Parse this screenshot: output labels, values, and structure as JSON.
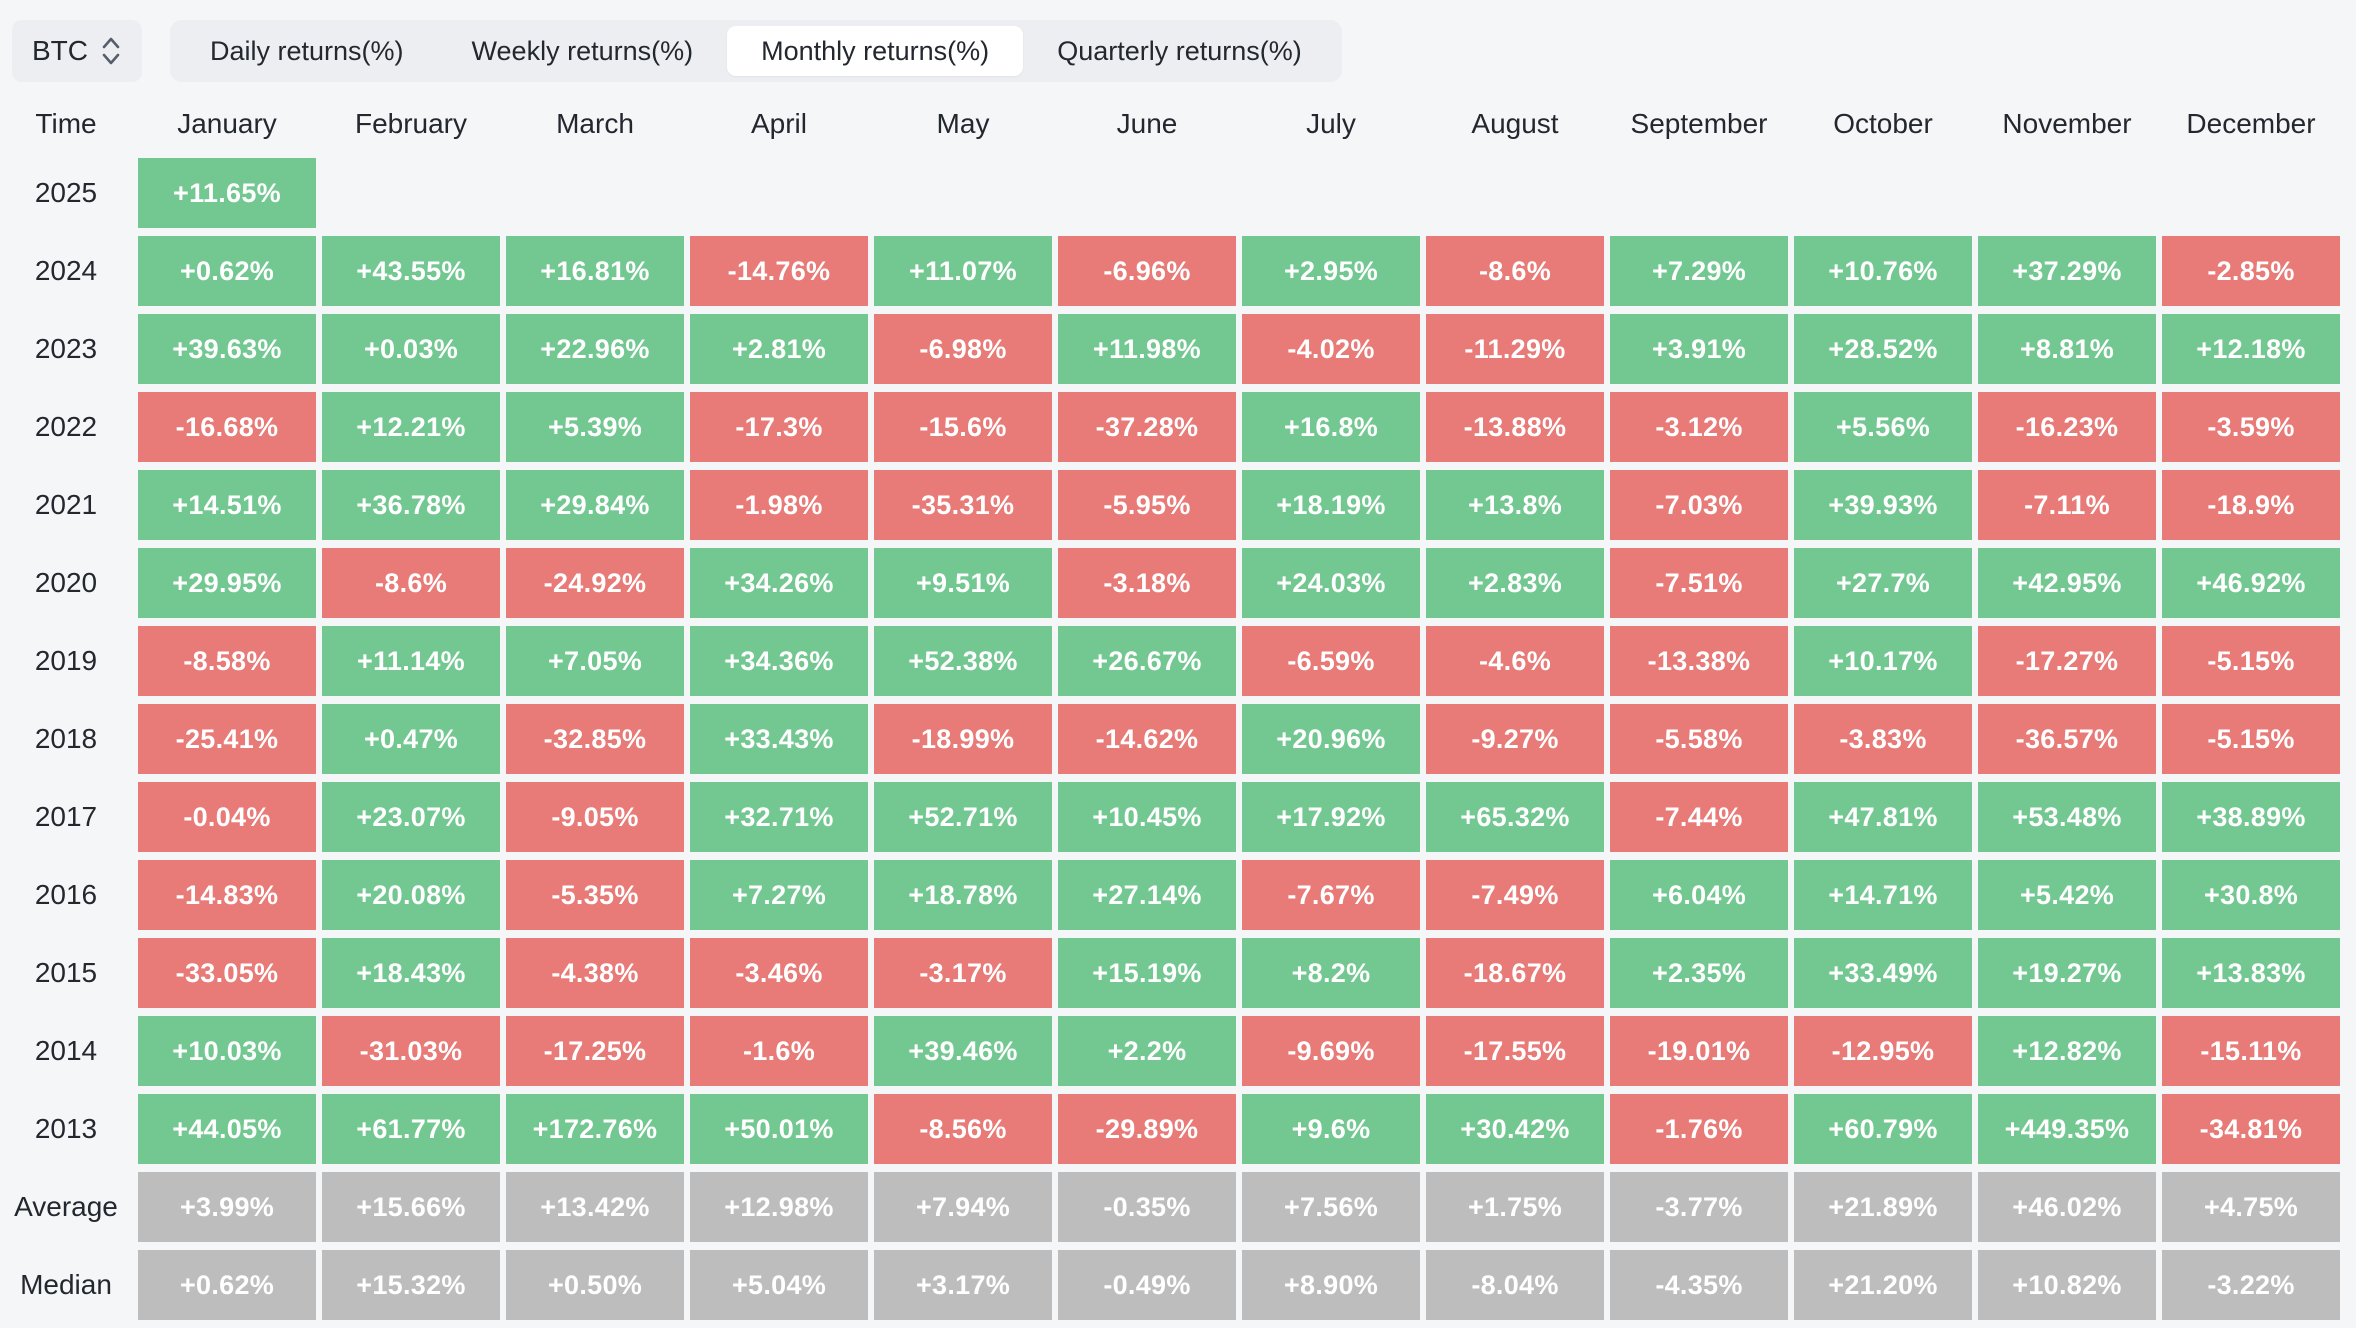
{
  "toolbar": {
    "symbol": "BTC",
    "tabs": [
      {
        "label": "Daily returns(%)",
        "active": false
      },
      {
        "label": "Weekly returns(%)",
        "active": false
      },
      {
        "label": "Monthly returns(%)",
        "active": true
      },
      {
        "label": "Quarterly returns(%)",
        "active": false
      }
    ]
  },
  "colors": {
    "positive": "#73c892",
    "negative": "#e87a77",
    "neutral": "#bdbdbd",
    "page_bg": "#f5f6f8",
    "toolbar_bg": "#eceef2",
    "text_dark": "#23272e",
    "cell_text": "#ffffff"
  },
  "table": {
    "corner": "Time",
    "months": [
      "January",
      "February",
      "March",
      "April",
      "May",
      "June",
      "July",
      "August",
      "September",
      "October",
      "November",
      "December"
    ],
    "rows": [
      {
        "label": "2025",
        "kind": "year",
        "values": [
          "+11.65%",
          "",
          "",
          "",
          "",
          "",
          "",
          "",
          "",
          "",
          "",
          ""
        ]
      },
      {
        "label": "2024",
        "kind": "year",
        "values": [
          "+0.62%",
          "+43.55%",
          "+16.81%",
          "-14.76%",
          "+11.07%",
          "-6.96%",
          "+2.95%",
          "-8.6%",
          "+7.29%",
          "+10.76%",
          "+37.29%",
          "-2.85%"
        ]
      },
      {
        "label": "2023",
        "kind": "year",
        "values": [
          "+39.63%",
          "+0.03%",
          "+22.96%",
          "+2.81%",
          "-6.98%",
          "+11.98%",
          "-4.02%",
          "-11.29%",
          "+3.91%",
          "+28.52%",
          "+8.81%",
          "+12.18%"
        ]
      },
      {
        "label": "2022",
        "kind": "year",
        "values": [
          "-16.68%",
          "+12.21%",
          "+5.39%",
          "-17.3%",
          "-15.6%",
          "-37.28%",
          "+16.8%",
          "-13.88%",
          "-3.12%",
          "+5.56%",
          "-16.23%",
          "-3.59%"
        ]
      },
      {
        "label": "2021",
        "kind": "year",
        "values": [
          "+14.51%",
          "+36.78%",
          "+29.84%",
          "-1.98%",
          "-35.31%",
          "-5.95%",
          "+18.19%",
          "+13.8%",
          "-7.03%",
          "+39.93%",
          "-7.11%",
          "-18.9%"
        ]
      },
      {
        "label": "2020",
        "kind": "year",
        "values": [
          "+29.95%",
          "-8.6%",
          "-24.92%",
          "+34.26%",
          "+9.51%",
          "-3.18%",
          "+24.03%",
          "+2.83%",
          "-7.51%",
          "+27.7%",
          "+42.95%",
          "+46.92%"
        ]
      },
      {
        "label": "2019",
        "kind": "year",
        "values": [
          "-8.58%",
          "+11.14%",
          "+7.05%",
          "+34.36%",
          "+52.38%",
          "+26.67%",
          "-6.59%",
          "-4.6%",
          "-13.38%",
          "+10.17%",
          "-17.27%",
          "-5.15%"
        ]
      },
      {
        "label": "2018",
        "kind": "year",
        "values": [
          "-25.41%",
          "+0.47%",
          "-32.85%",
          "+33.43%",
          "-18.99%",
          "-14.62%",
          "+20.96%",
          "-9.27%",
          "-5.58%",
          "-3.83%",
          "-36.57%",
          "-5.15%"
        ]
      },
      {
        "label": "2017",
        "kind": "year",
        "values": [
          "-0.04%",
          "+23.07%",
          "-9.05%",
          "+32.71%",
          "+52.71%",
          "+10.45%",
          "+17.92%",
          "+65.32%",
          "-7.44%",
          "+47.81%",
          "+53.48%",
          "+38.89%"
        ]
      },
      {
        "label": "2016",
        "kind": "year",
        "values": [
          "-14.83%",
          "+20.08%",
          "-5.35%",
          "+7.27%",
          "+18.78%",
          "+27.14%",
          "-7.67%",
          "-7.49%",
          "+6.04%",
          "+14.71%",
          "+5.42%",
          "+30.8%"
        ]
      },
      {
        "label": "2015",
        "kind": "year",
        "values": [
          "-33.05%",
          "+18.43%",
          "-4.38%",
          "-3.46%",
          "-3.17%",
          "+15.19%",
          "+8.2%",
          "-18.67%",
          "+2.35%",
          "+33.49%",
          "+19.27%",
          "+13.83%"
        ]
      },
      {
        "label": "2014",
        "kind": "year",
        "values": [
          "+10.03%",
          "-31.03%",
          "-17.25%",
          "-1.6%",
          "+39.46%",
          "+2.2%",
          "-9.69%",
          "-17.55%",
          "-19.01%",
          "-12.95%",
          "+12.82%",
          "-15.11%"
        ]
      },
      {
        "label": "2013",
        "kind": "year",
        "values": [
          "+44.05%",
          "+61.77%",
          "+172.76%",
          "+50.01%",
          "-8.56%",
          "-29.89%",
          "+9.6%",
          "+30.42%",
          "-1.76%",
          "+60.79%",
          "+449.35%",
          "-34.81%"
        ]
      },
      {
        "label": "Average",
        "kind": "summary",
        "values": [
          "+3.99%",
          "+15.66%",
          "+13.42%",
          "+12.98%",
          "+7.94%",
          "-0.35%",
          "+7.56%",
          "+1.75%",
          "-3.77%",
          "+21.89%",
          "+46.02%",
          "+4.75%"
        ]
      },
      {
        "label": "Median",
        "kind": "summary",
        "values": [
          "+0.62%",
          "+15.32%",
          "+0.50%",
          "+5.04%",
          "+3.17%",
          "-0.49%",
          "+8.90%",
          "-8.04%",
          "-4.35%",
          "+21.20%",
          "+10.82%",
          "-3.22%"
        ]
      }
    ]
  }
}
